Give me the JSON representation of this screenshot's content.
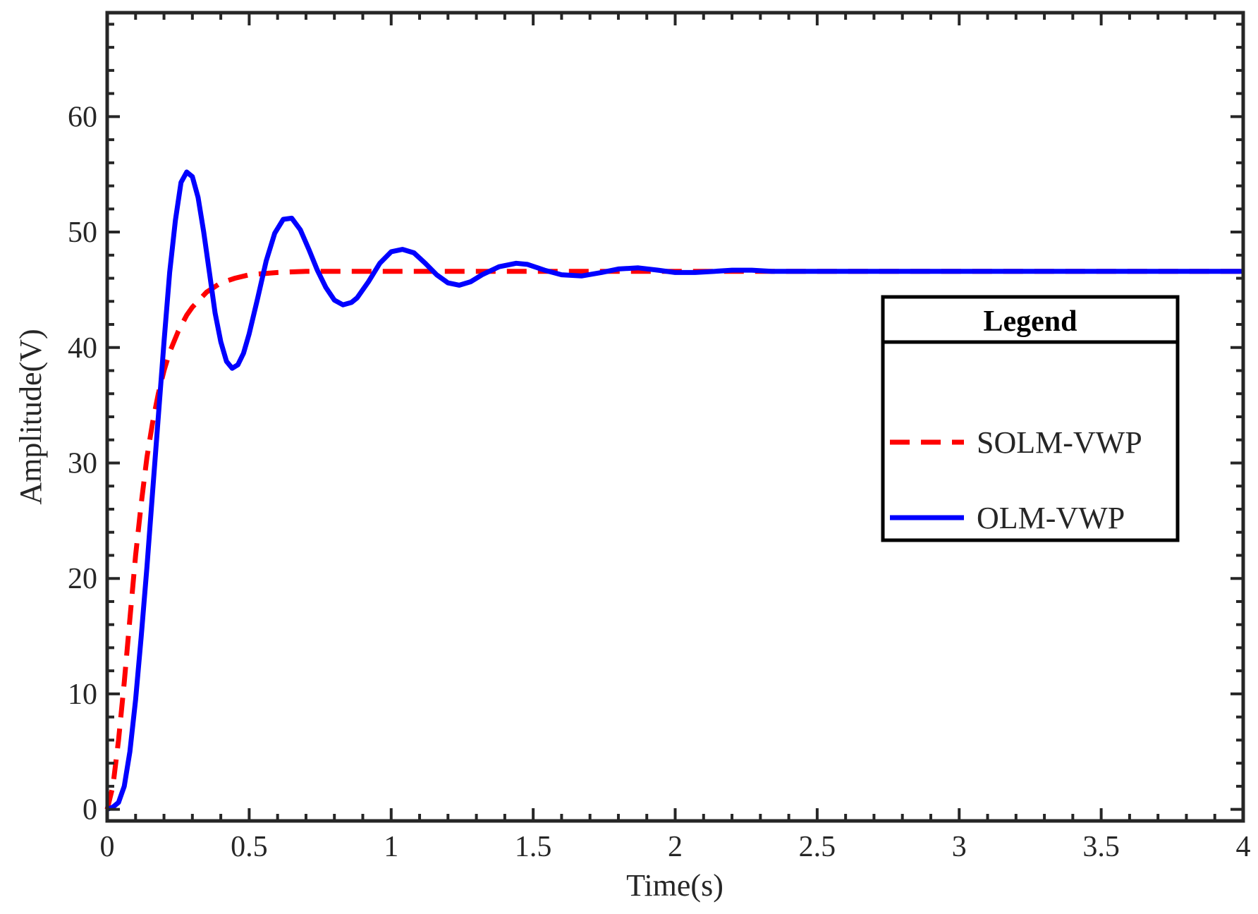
{
  "chart_data": {
    "type": "line",
    "title": "",
    "xlabel": "Time(s)",
    "ylabel": "Amplitude(V)",
    "xlim": [
      0,
      4
    ],
    "ylim": [
      -1,
      69
    ],
    "grid": false,
    "legend_position": "right-middle",
    "legend_title": "Legend",
    "x_ticks": [
      {
        "value": 0,
        "label": "0"
      },
      {
        "value": 0.5,
        "label": "0.5"
      },
      {
        "value": 1,
        "label": "1"
      },
      {
        "value": 1.5,
        "label": "1.5"
      },
      {
        "value": 2,
        "label": "2"
      },
      {
        "value": 2.5,
        "label": "2.5"
      },
      {
        "value": 3,
        "label": "3"
      },
      {
        "value": 3.5,
        "label": "3.5"
      },
      {
        "value": 4,
        "label": "4"
      }
    ],
    "y_ticks": [
      {
        "value": 0,
        "label": "0"
      },
      {
        "value": 10,
        "label": "10"
      },
      {
        "value": 20,
        "label": "20"
      },
      {
        "value": 30,
        "label": "30"
      },
      {
        "value": 40,
        "label": "40"
      },
      {
        "value": 50,
        "label": "50"
      },
      {
        "value": 60,
        "label": "60"
      }
    ],
    "series": [
      {
        "name": "SOLM-VWP",
        "color": "#ff0000",
        "style": "dashed",
        "x": [
          0,
          0.02,
          0.04,
          0.06,
          0.08,
          0.1,
          0.12,
          0.14,
          0.16,
          0.18,
          0.2,
          0.22,
          0.25,
          0.28,
          0.3,
          0.35,
          0.4,
          0.45,
          0.5,
          0.6,
          0.7,
          0.8,
          1.0,
          1.5,
          2.0,
          2.5,
          3.0,
          3.5,
          4.0
        ],
        "y": [
          0,
          2,
          6,
          11,
          16.5,
          22,
          26.5,
          30.5,
          33.5,
          36,
          38,
          39.6,
          41.4,
          42.8,
          43.5,
          44.8,
          45.6,
          46.0,
          46.3,
          46.5,
          46.6,
          46.6,
          46.6,
          46.6,
          46.6,
          46.6,
          46.6,
          46.6,
          46.6
        ]
      },
      {
        "name": "OLM-VWP",
        "color": "#0000ff",
        "style": "solid",
        "x": [
          0,
          0.02,
          0.04,
          0.06,
          0.08,
          0.1,
          0.12,
          0.14,
          0.16,
          0.18,
          0.2,
          0.22,
          0.24,
          0.26,
          0.28,
          0.3,
          0.32,
          0.34,
          0.36,
          0.38,
          0.4,
          0.42,
          0.44,
          0.46,
          0.48,
          0.5,
          0.53,
          0.56,
          0.59,
          0.62,
          0.65,
          0.68,
          0.71,
          0.74,
          0.77,
          0.8,
          0.83,
          0.86,
          0.88,
          0.92,
          0.96,
          1.0,
          1.04,
          1.08,
          1.12,
          1.16,
          1.2,
          1.24,
          1.28,
          1.32,
          1.38,
          1.44,
          1.48,
          1.54,
          1.6,
          1.67,
          1.74,
          1.8,
          1.87,
          1.94,
          2.0,
          2.07,
          2.14,
          2.2,
          2.27,
          2.34,
          2.42,
          2.5,
          3.0,
          3.5,
          4.0
        ],
        "y": [
          0,
          0.2,
          0.6,
          2,
          5,
          9.5,
          15,
          21,
          27.5,
          34,
          40.5,
          46.5,
          51,
          54.3,
          55.2,
          54.8,
          53,
          50,
          46.5,
          43,
          40.5,
          38.8,
          38.2,
          38.5,
          39.5,
          41.2,
          44.3,
          47.5,
          49.9,
          51.1,
          51.2,
          50.2,
          48.5,
          46.7,
          45.2,
          44.1,
          43.7,
          43.9,
          44.3,
          45.7,
          47.3,
          48.3,
          48.5,
          48.2,
          47.3,
          46.3,
          45.6,
          45.4,
          45.7,
          46.3,
          47.0,
          47.3,
          47.2,
          46.7,
          46.3,
          46.2,
          46.5,
          46.8,
          46.9,
          46.7,
          46.5,
          46.5,
          46.6,
          46.7,
          46.7,
          46.6,
          46.6,
          46.6,
          46.6,
          46.6,
          46.6
        ]
      }
    ]
  }
}
